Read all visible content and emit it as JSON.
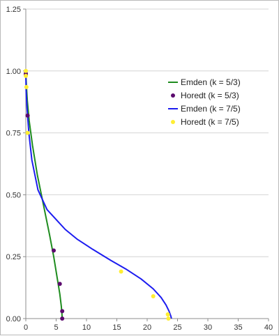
{
  "chart_data": {
    "type": "scatter",
    "title": "",
    "xlabel": "",
    "ylabel": "",
    "xlim": [
      0,
      40
    ],
    "ylim": [
      0,
      1.25
    ],
    "x_ticks": [
      0,
      5,
      10,
      15,
      20,
      25,
      30,
      35,
      40
    ],
    "y_ticks": [
      0,
      0.25,
      0.5,
      0.75,
      1.0,
      1.25
    ],
    "x_tick_labels": [
      "0",
      "5",
      "10",
      "15",
      "20",
      "25",
      "30",
      "35",
      "40"
    ],
    "y_tick_labels": [
      "0.00",
      "0.25",
      "0.50",
      "0.75",
      "1.00",
      "1.25"
    ],
    "grid": "horizontal",
    "legend_position": "right",
    "series": [
      {
        "name": "Emden (k = 5/3)",
        "kind": "line",
        "color": "#1e8c1e",
        "points": [
          [
            0,
            0.99
          ],
          [
            0.1,
            0.94
          ],
          [
            0.25,
            0.88
          ],
          [
            0.55,
            0.8
          ],
          [
            1.1,
            0.7
          ],
          [
            1.9,
            0.58
          ],
          [
            2.9,
            0.46
          ],
          [
            3.9,
            0.34
          ],
          [
            4.6,
            0.25
          ],
          [
            5.2,
            0.16
          ],
          [
            5.6,
            0.1
          ],
          [
            5.85,
            0.05
          ],
          [
            5.95,
            0.02
          ],
          [
            6.0,
            0.0
          ]
        ]
      },
      {
        "name": "Horedt (k = 5/3)",
        "kind": "markers",
        "color": "#5c0a6e",
        "points": [
          [
            0,
            0.99
          ],
          [
            0,
            0.985
          ],
          [
            0.3,
            0.82
          ],
          [
            4.6,
            0.275
          ],
          [
            5.6,
            0.14
          ],
          [
            6.0,
            0.03
          ],
          [
            6.0,
            0.0
          ]
        ]
      },
      {
        "name": "Emden (k = 7/5)",
        "kind": "line",
        "color": "#1c1cf0",
        "points": [
          [
            0,
            0.99
          ],
          [
            0.05,
            0.92
          ],
          [
            0.2,
            0.85
          ],
          [
            0.5,
            0.75
          ],
          [
            1.0,
            0.64
          ],
          [
            2.0,
            0.52
          ],
          [
            3.5,
            0.44
          ],
          [
            5.0,
            0.4
          ],
          [
            6.5,
            0.36
          ],
          [
            8.5,
            0.32
          ],
          [
            11.0,
            0.28
          ],
          [
            14.0,
            0.235
          ],
          [
            16.5,
            0.2
          ],
          [
            19.0,
            0.16
          ],
          [
            21.0,
            0.12
          ],
          [
            22.3,
            0.085
          ],
          [
            23.1,
            0.055
          ],
          [
            23.6,
            0.03
          ],
          [
            23.9,
            0.01
          ],
          [
            24.0,
            0.0
          ]
        ]
      },
      {
        "name": "Horedt (k = 7/5)",
        "kind": "markers",
        "color": "#ffee33",
        "points": [
          [
            0,
            1.0
          ],
          [
            0,
            0.98
          ],
          [
            0.1,
            0.935
          ],
          [
            0.3,
            0.75
          ],
          [
            15.7,
            0.19
          ],
          [
            21.0,
            0.09
          ],
          [
            23.4,
            0.017
          ],
          [
            23.5,
            0.0
          ]
        ]
      }
    ]
  }
}
